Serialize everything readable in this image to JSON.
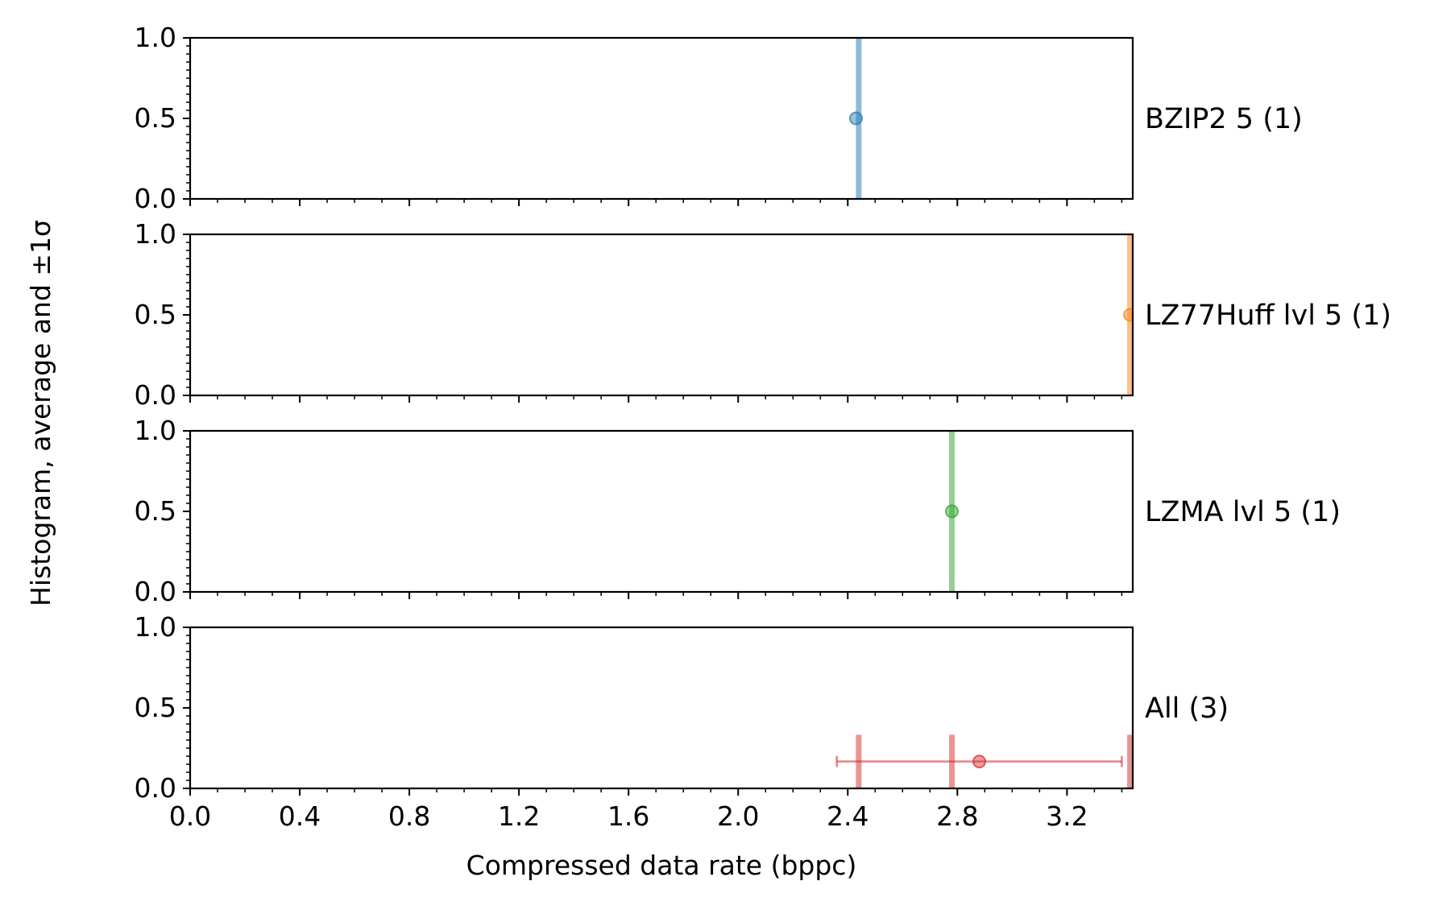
{
  "chart_data": {
    "type": "histogram-panels",
    "xlabel": "Compressed data rate (bppc)",
    "ylabel": "Histogram, average and ±1σ",
    "xlim": [
      0.0,
      3.44
    ],
    "ylim": [
      0.0,
      1.0
    ],
    "x_ticks": [
      "0.0",
      "0.4",
      "0.8",
      "1.2",
      "1.6",
      "2.0",
      "2.4",
      "2.8",
      "3.2"
    ],
    "y_ticks": [
      "0.0",
      "0.5",
      "1.0"
    ],
    "grid": false,
    "panels": [
      {
        "label": "BZIP2 5 (1)",
        "color": "#1f77b4",
        "bars": [
          {
            "x": 2.44,
            "height": 1.0
          }
        ],
        "mean": 2.43,
        "marker_y": 0.5,
        "std": 0.0
      },
      {
        "label": "LZ77Huff lvl 5 (1)",
        "color": "#ff7f0e",
        "bars": [
          {
            "x": 3.43,
            "height": 1.0
          }
        ],
        "mean": 3.43,
        "marker_y": 0.5,
        "std": 0.0
      },
      {
        "label": "LZMA lvl 5 (1)",
        "color": "#2ca02c",
        "bars": [
          {
            "x": 2.78,
            "height": 1.0
          }
        ],
        "mean": 2.78,
        "marker_y": 0.5,
        "std": 0.0
      },
      {
        "label": "All (3)",
        "color": "#d62728",
        "bars": [
          {
            "x": 2.44,
            "height": 0.333
          },
          {
            "x": 2.78,
            "height": 0.333
          },
          {
            "x": 3.43,
            "height": 0.333
          }
        ],
        "mean": 2.88,
        "marker_y": 0.167,
        "std": 0.52
      }
    ]
  }
}
